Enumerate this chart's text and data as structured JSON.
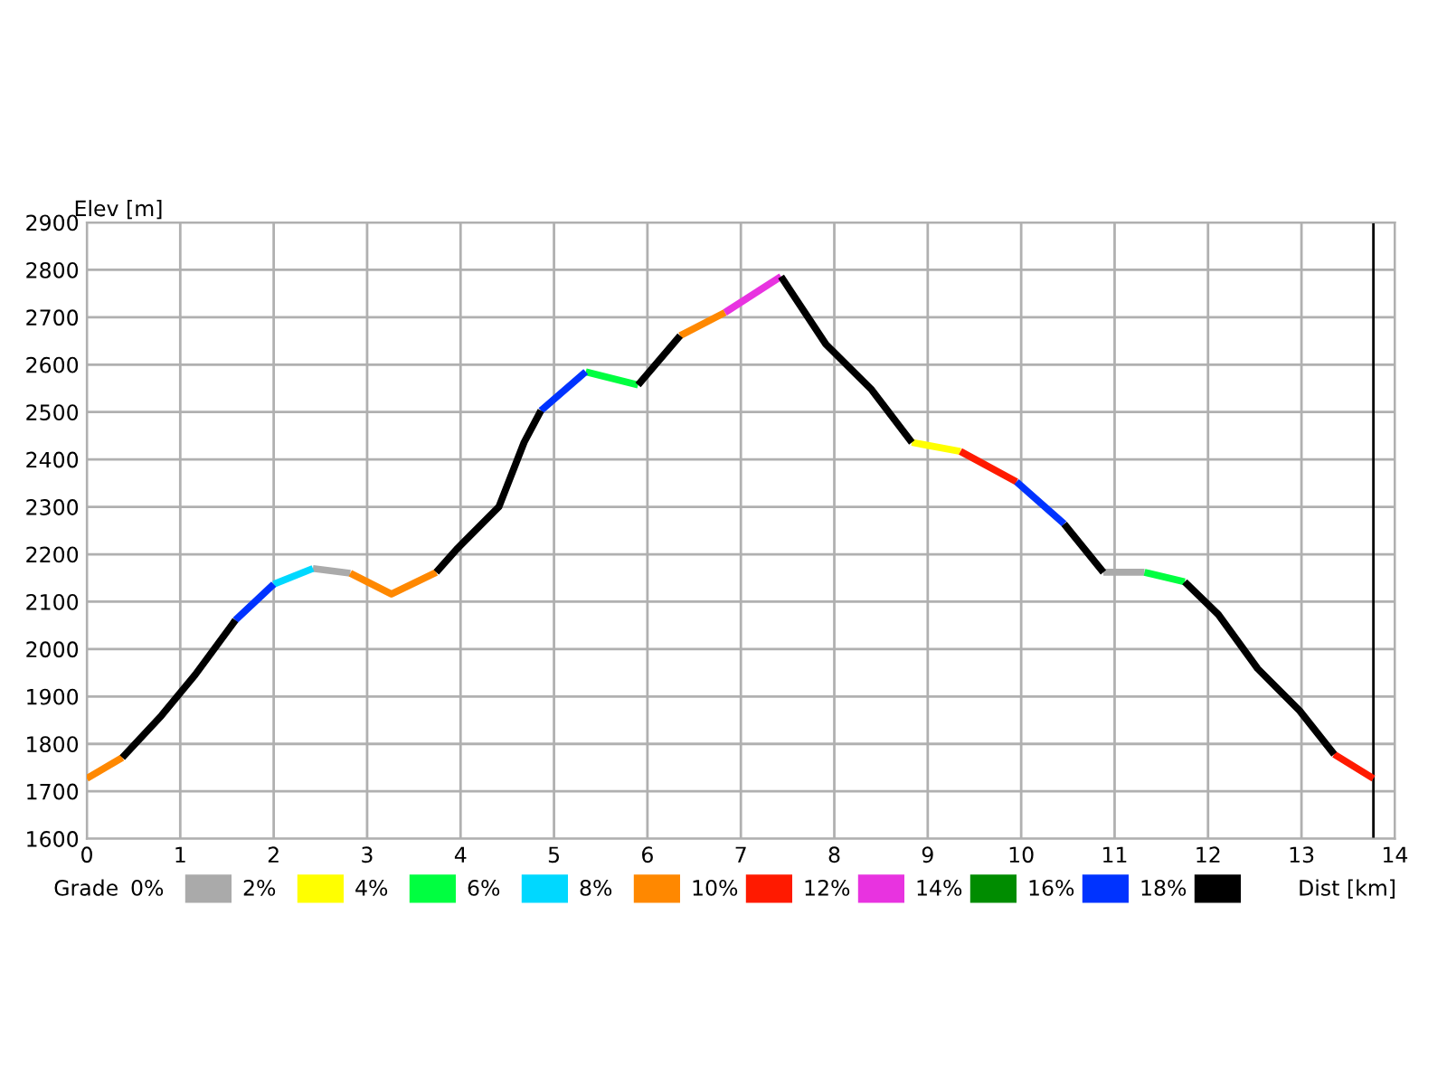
{
  "chart_data": {
    "type": "line",
    "xlabel": "Dist [km]",
    "ylabel": "Elev [m]",
    "legend_title": "Grade",
    "legend": "bottom",
    "xlim": [
      0,
      14
    ],
    "xticks": [
      0,
      1,
      2,
      3,
      4,
      5,
      6,
      7,
      8,
      9,
      10,
      11,
      12,
      13,
      14
    ],
    "ylim": [
      1600,
      2900
    ],
    "yticks": [
      1600,
      1700,
      1800,
      1900,
      2000,
      2100,
      2200,
      2300,
      2400,
      2500,
      2600,
      2700,
      2800,
      2900
    ],
    "grid": true,
    "marker": "none",
    "line_style": "solid",
    "ref_lines": [
      {
        "axis": "x",
        "value": 13.77,
        "color": "#000000"
      }
    ],
    "series": [
      {
        "name": "0%",
        "color": "#aaaaaa",
        "x": [
          2.42,
          2.82,
          null,
          10.88,
          11.32
        ],
        "values": [
          2170,
          2160,
          null,
          2162,
          2162
        ]
      },
      {
        "name": "2%",
        "color": "#ffff00",
        "x": [
          8.83,
          9.35
        ],
        "values": [
          2436,
          2417
        ]
      },
      {
        "name": "4%",
        "color": "#00ff40",
        "x": [
          5.34,
          5.9,
          null,
          11.32,
          11.75
        ],
        "values": [
          2585,
          2557,
          null,
          2162,
          2142
        ]
      },
      {
        "name": "6%",
        "color": "#00d8ff",
        "x": [
          2.0,
          2.42
        ],
        "values": [
          2137,
          2170
        ]
      },
      {
        "name": "8%",
        "color": "#ff8800",
        "x": [
          0,
          0.38,
          null,
          2.82,
          3.26,
          3.74,
          null,
          6.35,
          6.83
        ],
        "values": [
          1727,
          1771,
          null,
          2160,
          2116,
          2162,
          null,
          2661,
          2710
        ]
      },
      {
        "name": "10%",
        "color": "#ff1a00",
        "x": [
          9.35,
          9.95,
          null,
          13.35,
          13.77
        ],
        "values": [
          2417,
          2353,
          null,
          1778,
          1727
        ]
      },
      {
        "name": "12%",
        "color": "#e833e0",
        "x": [
          6.83,
          7.43
        ],
        "values": [
          2710,
          2786
        ]
      },
      {
        "name": "14%",
        "color": "#008c00"
      },
      {
        "name": "16%",
        "color": "#0033ff",
        "x": [
          1.59,
          2.0,
          null,
          4.86,
          5.34,
          null,
          9.95,
          10.46
        ],
        "values": [
          2061,
          2137,
          null,
          2503,
          2585,
          null,
          2353,
          2264
        ]
      },
      {
        "name": "18%",
        "color": "#000000",
        "x": [
          0.38,
          0.8,
          1.16,
          1.59,
          null,
          3.74,
          3.97,
          4.41,
          4.68,
          4.86,
          null,
          5.9,
          6.35,
          null,
          7.43,
          7.91,
          8.4,
          8.83,
          null,
          10.46,
          10.88,
          null,
          11.75,
          12.11,
          12.53,
          12.98,
          13.35
        ],
        "values": [
          1771,
          1860,
          1946,
          2061,
          null,
          2162,
          2213,
          2300,
          2436,
          2503,
          null,
          2557,
          2661,
          null,
          2786,
          2643,
          2547,
          2436,
          null,
          2264,
          2162,
          null,
          2142,
          2073,
          1959,
          1870,
          1778
        ]
      }
    ]
  }
}
